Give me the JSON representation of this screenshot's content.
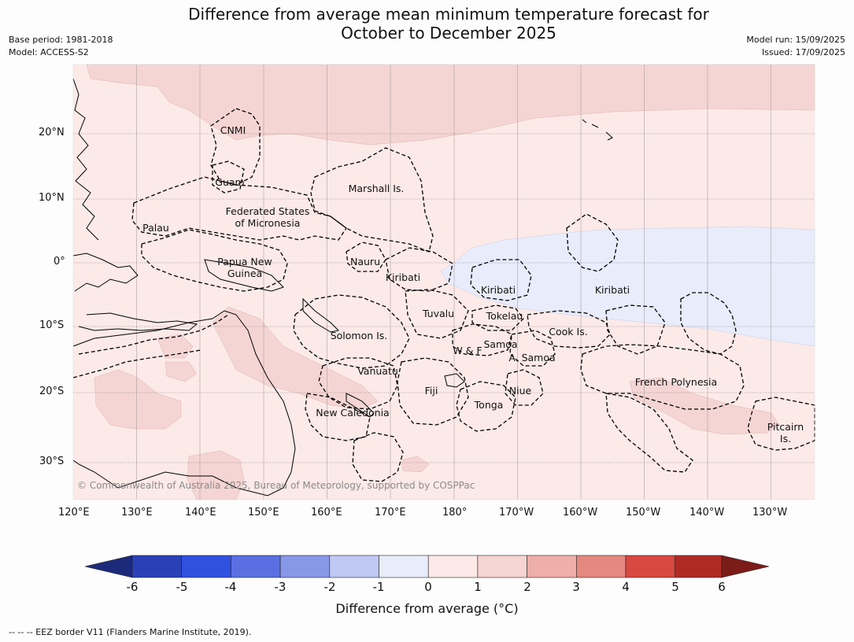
{
  "title_line1": "Difference from average mean minimum temperature forecast for",
  "title_line2": "October to December 2025",
  "meta_left": {
    "base_period": "Base period: 1981-2018",
    "model": "Model: ACCESS-S2"
  },
  "meta_right": {
    "model_run": "Model run: 15/09/2025",
    "issued": "Issued: 17/09/2025"
  },
  "lon_labels": [
    "120°E",
    "130°E",
    "140°E",
    "150°E",
    "160°E",
    "170°E",
    "180°",
    "170°W",
    "160°W",
    "150°W",
    "140°W",
    "130°W"
  ],
  "lat_labels": [
    "20°N",
    "10°N",
    "0°",
    "10°S",
    "20°S",
    "30°S"
  ],
  "regions": {
    "cnmi": "CNMI",
    "guam": "Guam",
    "marshall": "Marshall Is.",
    "fsm1": "Federated States",
    "fsm2": "of Micronesia",
    "palau": "Palau",
    "png1": "Papua New",
    "png2": "Guinea",
    "nauru": "Nauru",
    "kiribati_w": "Kiribati",
    "kiribati_c": "Kiribati",
    "kiribati_e": "Kiribati",
    "tuvalu": "Tuvalu",
    "tokelau": "Tokelau",
    "cook": "Cook Is.",
    "solomon": "Solomon Is.",
    "wf": "W & F",
    "samoa": "Samoa",
    "asamoa": "A. Samoa",
    "vanuatu": "Vanuatu",
    "fiji": "Fiji",
    "niue": "Niue",
    "frpoly": "French Polynesia",
    "tonga": "Tonga",
    "newcal": "New Caledonia",
    "pitcairn1": "Pitcairn",
    "pitcairn2": "Is."
  },
  "copyright": "© Commonwealth of Australia 2025, Bureau of Meteorology, supported by COSPPac",
  "colorbar": {
    "ticks": [
      "-6",
      "-5",
      "-4",
      "-3",
      "-2",
      "-1",
      "0",
      "1",
      "2",
      "3",
      "4",
      "5",
      "6"
    ],
    "label": "Difference from average (°C)",
    "colors": [
      "#1c2a7c",
      "#2a40b8",
      "#3050e0",
      "#5a70e2",
      "#8898e8",
      "#c0c8f4",
      "#e8ecfb",
      "#fceae8",
      "#f6d4d2",
      "#eeaeaa",
      "#e48880",
      "#d84840",
      "#b02a24",
      "#7c1c18"
    ]
  },
  "legend_note": "--  --  -- EEZ border V11 (Flanders Marine Institute, 2019)."
}
